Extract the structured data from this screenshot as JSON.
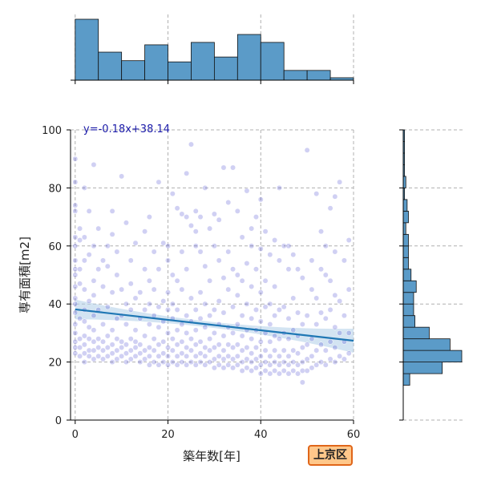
{
  "badge_label": "上京区",
  "chart_data": {
    "type": "scatter",
    "xlabel": "築年数[年]",
    "ylabel": "専有面積[m2]",
    "xlim": [
      -1,
      60
    ],
    "ylim": [
      0,
      100
    ],
    "xticks": [
      0,
      20,
      40,
      60
    ],
    "yticks": [
      0,
      20,
      40,
      60,
      80,
      100
    ],
    "grid": true,
    "regression": {
      "equation": "y=-0.18x+38.14",
      "slope": -0.18,
      "intercept": 38.14
    },
    "colors": {
      "points": "#2b2bc8",
      "line": "#1f77b4",
      "band": "#aecde8",
      "hist": "#5b9bc8",
      "grid": "#b0b0b0"
    },
    "x_histogram": {
      "bin_edges": [
        0,
        5,
        10,
        15,
        20,
        25,
        30,
        35,
        40,
        45,
        50,
        55,
        60
      ],
      "heights": [
        100,
        46,
        32,
        58,
        30,
        62,
        38,
        75,
        62,
        16,
        16,
        4
      ]
    },
    "y_histogram": {
      "bin_edges": [
        12,
        16,
        20,
        24,
        28,
        32,
        36,
        40,
        44,
        48,
        52,
        56,
        60,
        64,
        68,
        72,
        76,
        80,
        84,
        88,
        92,
        96,
        100
      ],
      "heights": [
        10,
        60,
        90,
        72,
        40,
        18,
        16,
        16,
        20,
        12,
        8,
        8,
        8,
        4,
        8,
        6,
        2,
        4,
        2,
        2,
        2,
        2
      ]
    },
    "points": [
      [
        0,
        23
      ],
      [
        0,
        25
      ],
      [
        0,
        27
      ],
      [
        0,
        30
      ],
      [
        0,
        33
      ],
      [
        0,
        37
      ],
      [
        0,
        40
      ],
      [
        0,
        42
      ],
      [
        0,
        46
      ],
      [
        0,
        50
      ],
      [
        0,
        52
      ],
      [
        0,
        55
      ],
      [
        0,
        60
      ],
      [
        0,
        63
      ],
      [
        0,
        72
      ],
      [
        0,
        74
      ],
      [
        0,
        82
      ],
      [
        0,
        90
      ],
      [
        1,
        22
      ],
      [
        1,
        25
      ],
      [
        1,
        28
      ],
      [
        1,
        35
      ],
      [
        1,
        47
      ],
      [
        1,
        52
      ],
      [
        1,
        62
      ],
      [
        1,
        66
      ],
      [
        2,
        20
      ],
      [
        2,
        23
      ],
      [
        2,
        26
      ],
      [
        2,
        29
      ],
      [
        2,
        34
      ],
      [
        2,
        38
      ],
      [
        2,
        45
      ],
      [
        2,
        55
      ],
      [
        2,
        63
      ],
      [
        2,
        80
      ],
      [
        3,
        22
      ],
      [
        3,
        24
      ],
      [
        3,
        28
      ],
      [
        3,
        32
      ],
      [
        3,
        41
      ],
      [
        3,
        57
      ],
      [
        3,
        72
      ],
      [
        4,
        21
      ],
      [
        4,
        24
      ],
      [
        4,
        27
      ],
      [
        4,
        31
      ],
      [
        4,
        36
      ],
      [
        4,
        43
      ],
      [
        4,
        48
      ],
      [
        4,
        60
      ],
      [
        4,
        88
      ],
      [
        5,
        22
      ],
      [
        5,
        25
      ],
      [
        5,
        28
      ],
      [
        5,
        38
      ],
      [
        5,
        52
      ],
      [
        5,
        66
      ],
      [
        6,
        21
      ],
      [
        6,
        24
      ],
      [
        6,
        27
      ],
      [
        6,
        33
      ],
      [
        6,
        46
      ],
      [
        6,
        55
      ],
      [
        7,
        22
      ],
      [
        7,
        25
      ],
      [
        7,
        29
      ],
      [
        7,
        39
      ],
      [
        7,
        53
      ],
      [
        7,
        60
      ],
      [
        8,
        20
      ],
      [
        8,
        23
      ],
      [
        8,
        26
      ],
      [
        8,
        31
      ],
      [
        8,
        44
      ],
      [
        8,
        64
      ],
      [
        8,
        72
      ],
      [
        9,
        21
      ],
      [
        9,
        24
      ],
      [
        9,
        28
      ],
      [
        9,
        35
      ],
      [
        9,
        50
      ],
      [
        9,
        58
      ],
      [
        10,
        22
      ],
      [
        10,
        25
      ],
      [
        10,
        27
      ],
      [
        10,
        36
      ],
      [
        10,
        45
      ],
      [
        10,
        84
      ],
      [
        11,
        20
      ],
      [
        11,
        23
      ],
      [
        11,
        26
      ],
      [
        11,
        33
      ],
      [
        11,
        40
      ],
      [
        11,
        68
      ],
      [
        12,
        21
      ],
      [
        12,
        24
      ],
      [
        12,
        28
      ],
      [
        12,
        38
      ],
      [
        12,
        47
      ],
      [
        12,
        55
      ],
      [
        13,
        22
      ],
      [
        13,
        25
      ],
      [
        13,
        27
      ],
      [
        13,
        31
      ],
      [
        13,
        42
      ],
      [
        13,
        61
      ],
      [
        14,
        20
      ],
      [
        14,
        23
      ],
      [
        14,
        26
      ],
      [
        14,
        35
      ],
      [
        14,
        44
      ],
      [
        15,
        21
      ],
      [
        15,
        24
      ],
      [
        15,
        29
      ],
      [
        15,
        38
      ],
      [
        15,
        52
      ],
      [
        15,
        65
      ],
      [
        16,
        19
      ],
      [
        16,
        22
      ],
      [
        16,
        25
      ],
      [
        16,
        33
      ],
      [
        16,
        40
      ],
      [
        16,
        48
      ],
      [
        16,
        70
      ],
      [
        17,
        20
      ],
      [
        17,
        24
      ],
      [
        17,
        28
      ],
      [
        17,
        36
      ],
      [
        17,
        45
      ],
      [
        17,
        58
      ],
      [
        18,
        19
      ],
      [
        18,
        22
      ],
      [
        18,
        26
      ],
      [
        18,
        32
      ],
      [
        18,
        39
      ],
      [
        18,
        52
      ],
      [
        18,
        82
      ],
      [
        19,
        20
      ],
      [
        19,
        23
      ],
      [
        19,
        27
      ],
      [
        19,
        34
      ],
      [
        19,
        41
      ],
      [
        19,
        61
      ],
      [
        20,
        19
      ],
      [
        20,
        22
      ],
      [
        20,
        25
      ],
      [
        20,
        30
      ],
      [
        20,
        38
      ],
      [
        20,
        44
      ],
      [
        20,
        55
      ],
      [
        20,
        60
      ],
      [
        21,
        20
      ],
      [
        21,
        24
      ],
      [
        21,
        28
      ],
      [
        21,
        35
      ],
      [
        21,
        40
      ],
      [
        21,
        50
      ],
      [
        21,
        78
      ],
      [
        22,
        19
      ],
      [
        22,
        22
      ],
      [
        22,
        26
      ],
      [
        22,
        31
      ],
      [
        22,
        38
      ],
      [
        22,
        48
      ],
      [
        22,
        73
      ],
      [
        23,
        20
      ],
      [
        23,
        23
      ],
      [
        23,
        27
      ],
      [
        23,
        33
      ],
      [
        23,
        45
      ],
      [
        23,
        58
      ],
      [
        23,
        71
      ],
      [
        24,
        19
      ],
      [
        24,
        22
      ],
      [
        24,
        25
      ],
      [
        24,
        30
      ],
      [
        24,
        36
      ],
      [
        24,
        52
      ],
      [
        24,
        70
      ],
      [
        24,
        85
      ],
      [
        25,
        20
      ],
      [
        25,
        24
      ],
      [
        25,
        28
      ],
      [
        25,
        34
      ],
      [
        25,
        42
      ],
      [
        25,
        67
      ],
      [
        25,
        95
      ],
      [
        26,
        19
      ],
      [
        26,
        22
      ],
      [
        26,
        26
      ],
      [
        26,
        31
      ],
      [
        26,
        38
      ],
      [
        26,
        60
      ],
      [
        26,
        65
      ],
      [
        26,
        72
      ],
      [
        27,
        20
      ],
      [
        27,
        23
      ],
      [
        27,
        27
      ],
      [
        27,
        35
      ],
      [
        27,
        44
      ],
      [
        27,
        58
      ],
      [
        27,
        70
      ],
      [
        28,
        19
      ],
      [
        28,
        22
      ],
      [
        28,
        25
      ],
      [
        28,
        32
      ],
      [
        28,
        40
      ],
      [
        28,
        53
      ],
      [
        28,
        80
      ],
      [
        29,
        20
      ],
      [
        29,
        24
      ],
      [
        29,
        28
      ],
      [
        29,
        36
      ],
      [
        29,
        48
      ],
      [
        29,
        66
      ],
      [
        30,
        18
      ],
      [
        30,
        21
      ],
      [
        30,
        25
      ],
      [
        30,
        30
      ],
      [
        30,
        38
      ],
      [
        30,
        60
      ],
      [
        30,
        71
      ],
      [
        31,
        19
      ],
      [
        31,
        22
      ],
      [
        31,
        26
      ],
      [
        31,
        33
      ],
      [
        31,
        41
      ],
      [
        31,
        55
      ],
      [
        31,
        69
      ],
      [
        32,
        18
      ],
      [
        32,
        21
      ],
      [
        32,
        24
      ],
      [
        32,
        29
      ],
      [
        32,
        37
      ],
      [
        32,
        49
      ],
      [
        32,
        87
      ],
      [
        33,
        19
      ],
      [
        33,
        22
      ],
      [
        33,
        26
      ],
      [
        33,
        32
      ],
      [
        33,
        45
      ],
      [
        33,
        58
      ],
      [
        33,
        75
      ],
      [
        34,
        18
      ],
      [
        34,
        21
      ],
      [
        34,
        25
      ],
      [
        34,
        30
      ],
      [
        34,
        39
      ],
      [
        34,
        52
      ],
      [
        34,
        87
      ],
      [
        35,
        19
      ],
      [
        35,
        22
      ],
      [
        35,
        26
      ],
      [
        35,
        33
      ],
      [
        35,
        43
      ],
      [
        35,
        50
      ],
      [
        35,
        72
      ],
      [
        36,
        17
      ],
      [
        36,
        20
      ],
      [
        36,
        24
      ],
      [
        36,
        29
      ],
      [
        36,
        36
      ],
      [
        36,
        48
      ],
      [
        36,
        63
      ],
      [
        37,
        18
      ],
      [
        37,
        21
      ],
      [
        37,
        25
      ],
      [
        37,
        31
      ],
      [
        37,
        40
      ],
      [
        37,
        54
      ],
      [
        37,
        79
      ],
      [
        38,
        17
      ],
      [
        38,
        20
      ],
      [
        38,
        23
      ],
      [
        38,
        28
      ],
      [
        38,
        35
      ],
      [
        38,
        46
      ],
      [
        38,
        60
      ],
      [
        38,
        66
      ],
      [
        39,
        18
      ],
      [
        39,
        21
      ],
      [
        39,
        25
      ],
      [
        39,
        31
      ],
      [
        39,
        38
      ],
      [
        39,
        52
      ],
      [
        39,
        70
      ],
      [
        40,
        16
      ],
      [
        40,
        19
      ],
      [
        40,
        22
      ],
      [
        40,
        27
      ],
      [
        40,
        34
      ],
      [
        40,
        44
      ],
      [
        40,
        59
      ],
      [
        40,
        76
      ],
      [
        41,
        17
      ],
      [
        41,
        20
      ],
      [
        41,
        24
      ],
      [
        41,
        30
      ],
      [
        41,
        39
      ],
      [
        41,
        48
      ],
      [
        41,
        65
      ],
      [
        42,
        16
      ],
      [
        42,
        19
      ],
      [
        42,
        22
      ],
      [
        42,
        27
      ],
      [
        42,
        33
      ],
      [
        42,
        40
      ],
      [
        42,
        57
      ],
      [
        43,
        17
      ],
      [
        43,
        20
      ],
      [
        43,
        24
      ],
      [
        43,
        29
      ],
      [
        43,
        36
      ],
      [
        43,
        46
      ],
      [
        43,
        62
      ],
      [
        44,
        16
      ],
      [
        44,
        19
      ],
      [
        44,
        22
      ],
      [
        44,
        28
      ],
      [
        44,
        38
      ],
      [
        44,
        55
      ],
      [
        44,
        80
      ],
      [
        45,
        17
      ],
      [
        45,
        20
      ],
      [
        45,
        24
      ],
      [
        45,
        30
      ],
      [
        45,
        39
      ],
      [
        45,
        60
      ],
      [
        46,
        16
      ],
      [
        46,
        19
      ],
      [
        46,
        22
      ],
      [
        46,
        28
      ],
      [
        46,
        35
      ],
      [
        46,
        52
      ],
      [
        46,
        60
      ],
      [
        47,
        17
      ],
      [
        47,
        20
      ],
      [
        47,
        24
      ],
      [
        47,
        31
      ],
      [
        47,
        42
      ],
      [
        47,
        57
      ],
      [
        48,
        16
      ],
      [
        48,
        19
      ],
      [
        48,
        23
      ],
      [
        48,
        29
      ],
      [
        48,
        37
      ],
      [
        48,
        52
      ],
      [
        49,
        13
      ],
      [
        49,
        17
      ],
      [
        49,
        20
      ],
      [
        49,
        25
      ],
      [
        49,
        33
      ],
      [
        49,
        49
      ],
      [
        50,
        17
      ],
      [
        50,
        21
      ],
      [
        50,
        26
      ],
      [
        50,
        36
      ],
      [
        50,
        93
      ],
      [
        51,
        18
      ],
      [
        51,
        22
      ],
      [
        51,
        28
      ],
      [
        51,
        45
      ],
      [
        51,
        55
      ],
      [
        52,
        19
      ],
      [
        52,
        24
      ],
      [
        52,
        33
      ],
      [
        52,
        42
      ],
      [
        52,
        78
      ],
      [
        53,
        20
      ],
      [
        53,
        26
      ],
      [
        53,
        37
      ],
      [
        53,
        52
      ],
      [
        53,
        65
      ],
      [
        54,
        19
      ],
      [
        54,
        24
      ],
      [
        54,
        35
      ],
      [
        54,
        50
      ],
      [
        54,
        60
      ],
      [
        55,
        21
      ],
      [
        55,
        27
      ],
      [
        55,
        38
      ],
      [
        55,
        48
      ],
      [
        55,
        73
      ],
      [
        56,
        20
      ],
      [
        56,
        25
      ],
      [
        56,
        32
      ],
      [
        56,
        43
      ],
      [
        56,
        58
      ],
      [
        56,
        77
      ],
      [
        57,
        22
      ],
      [
        57,
        30
      ],
      [
        57,
        41
      ],
      [
        57,
        82
      ],
      [
        58,
        21
      ],
      [
        58,
        27
      ],
      [
        58,
        36
      ],
      [
        58,
        55
      ],
      [
        59,
        23
      ],
      [
        59,
        30
      ],
      [
        59,
        45
      ],
      [
        59,
        62
      ]
    ]
  }
}
